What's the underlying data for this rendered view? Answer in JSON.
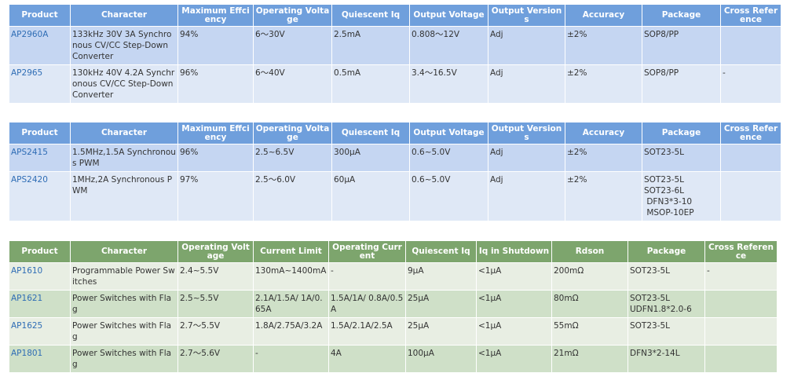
{
  "table1": {
    "headers": [
      "Product",
      "Character",
      "Maximum Effciency",
      "Operating Voltage",
      "Quiescent Iq",
      "Output Voltage",
      "Output Versions",
      "Accuracy",
      "Package",
      "Cross Reference"
    ],
    "rows": [
      [
        "AP2960A",
        "133kHz 30V 3A Synchronous CV/CC Step-Down Converter",
        "94%",
        "6～30V",
        "2.5mA",
        "0.808～12V",
        "Adj",
        "±2%",
        "SOP8/PP",
        ""
      ],
      [
        "AP2965",
        "130kHz 40V 4.2A Synchronous CV/CC Step-Down Converter",
        "96%",
        "6～40V",
        "0.5mA",
        "3.4～16.5V",
        "Adj",
        "±2%",
        "SOP8/PP",
        "-"
      ]
    ]
  },
  "table2": {
    "headers": [
      "Product",
      "Character",
      "Maximum Effciency",
      "Operating Voltage",
      "Quiescent Iq",
      "Output Voltage",
      "Output Versions",
      "Accuracy",
      "Package",
      "Cross Reference"
    ],
    "rows": [
      [
        "APS2415",
        "1.5MHz,1.5A Synchronous PWM",
        "96%",
        "2.5~6.5V",
        "300μA",
        "0.6~5.0V",
        "Adj",
        "±2%",
        "SOT23-5L",
        ""
      ],
      [
        "APS2420",
        "1MHz,2A Synchronous PWM",
        "97%",
        "2.5～6.0V",
        "60μA",
        "0.6~5.0V",
        "Adj",
        "±2%",
        "SOT23-5L\nSOT23-6L\n DFN3*3-10\n MSOP-10EP",
        ""
      ]
    ]
  },
  "table3": {
    "headers": [
      "Product",
      "Character",
      "Operating Voltage",
      "Current Limit",
      "Operating Current",
      "Quiescent Iq",
      "Iq in Shutdown",
      "Rdson",
      "Package",
      "Cross Reference"
    ],
    "rows": [
      [
        "AP1610",
        "Programmable Power Switches",
        "2.4~5.5V",
        "130mA~1400mA",
        "-",
        "9μA",
        "<1μA",
        "200mΩ",
        "SOT23-5L",
        "-"
      ],
      [
        "AP1621",
        "Power Switches with Flag",
        "2.5~5.5V",
        "2.1A/1.5A/ 1A/0.65A",
        "1.5A/1A/ 0.8A/0.5A",
        "25μA",
        "<1μA",
        "80mΩ",
        "SOT23-5L\nUDFN1.8*2.0-6",
        ""
      ],
      [
        "AP1625",
        "Power Switches with Flag",
        "2.7～5.5V",
        "1.8A/2.75A/3.2A",
        "1.5A/2.1A/2.5A",
        "25μA",
        "<1μA",
        "55mΩ",
        "SOT23-5L",
        ""
      ],
      [
        "AP1801",
        "Power Switches with Flag",
        "2.7～5.6V",
        "-",
        "4A",
        "100μA",
        "<1μA",
        "21mΩ",
        "DFN3*2-14L",
        ""
      ]
    ]
  }
}
